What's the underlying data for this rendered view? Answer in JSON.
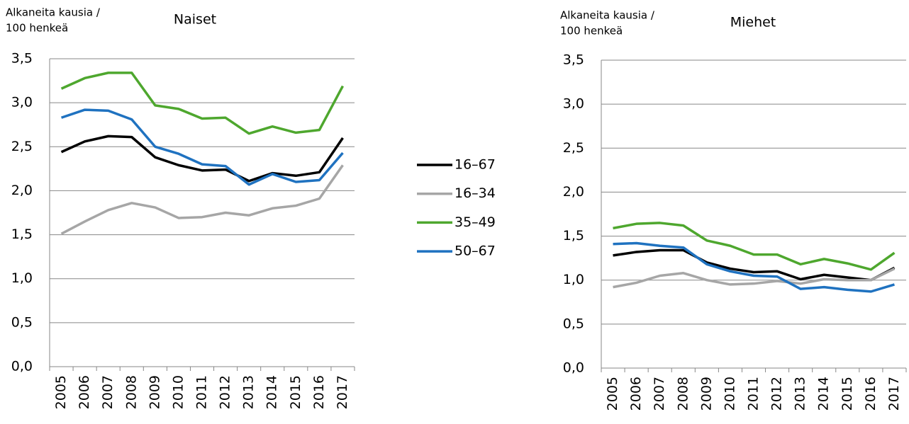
{
  "chart_data": [
    {
      "type": "line",
      "title": "Naiset",
      "ylabel": [
        "Alkaneita kausia /",
        "100 henkeä"
      ],
      "categories": [
        "2005",
        "2006",
        "2007",
        "2008",
        "2009",
        "2010",
        "2011",
        "2012",
        "2013",
        "2014",
        "2015",
        "2016",
        "2017"
      ],
      "ylim": [
        0,
        3.5
      ],
      "yticks": [
        {
          "value": 0,
          "label": "0,0"
        },
        {
          "value": 0.5,
          "label": "0,5"
        },
        {
          "value": 1,
          "label": "1,0"
        },
        {
          "value": 1.5,
          "label": "1,5"
        },
        {
          "value": 2,
          "label": "2,0"
        },
        {
          "value": 2.5,
          "label": "2,5"
        },
        {
          "value": 3,
          "label": "3,0"
        },
        {
          "value": 3.5,
          "label": "3,5"
        }
      ],
      "grid": true,
      "series": [
        {
          "name": "16–67",
          "color": "#000000",
          "values": [
            2.44,
            2.56,
            2.62,
            2.61,
            2.38,
            2.29,
            2.23,
            2.24,
            2.11,
            2.2,
            2.17,
            2.21,
            2.6
          ]
        },
        {
          "name": "16–34",
          "color": "#a6a6a6",
          "values": [
            1.51,
            1.65,
            1.78,
            1.86,
            1.81,
            1.69,
            1.7,
            1.75,
            1.72,
            1.8,
            1.83,
            1.91,
            2.29
          ]
        },
        {
          "name": "35–49",
          "color": "#4ea72e",
          "values": [
            3.16,
            3.28,
            3.34,
            3.34,
            2.97,
            2.93,
            2.82,
            2.83,
            2.65,
            2.73,
            2.66,
            2.69,
            3.19
          ]
        },
        {
          "name": "50–67",
          "color": "#1f72c0",
          "values": [
            2.83,
            2.92,
            2.91,
            2.81,
            2.5,
            2.42,
            2.3,
            2.28,
            2.07,
            2.19,
            2.1,
            2.12,
            2.43
          ]
        }
      ]
    },
    {
      "type": "line",
      "title": "Miehet",
      "ylabel": [
        "Alkaneita kausia /",
        "100 henkeä"
      ],
      "categories": [
        "2005",
        "2006",
        "2007",
        "2008",
        "2009",
        "2010",
        "2011",
        "2012",
        "2013",
        "2014",
        "2015",
        "2016",
        "2017"
      ],
      "ylim": [
        0,
        3.5
      ],
      "yticks": [
        {
          "value": 0,
          "label": "0,0"
        },
        {
          "value": 0.5,
          "label": "0,5"
        },
        {
          "value": 1,
          "label": "1,0"
        },
        {
          "value": 1.5,
          "label": "1,5"
        },
        {
          "value": 2,
          "label": "2,0"
        },
        {
          "value": 2.5,
          "label": "2,5"
        },
        {
          "value": 3,
          "label": "3,0"
        },
        {
          "value": 3.5,
          "label": "3,5"
        }
      ],
      "grid": true,
      "series": [
        {
          "color": "#000000",
          "values": [
            1.28,
            1.32,
            1.34,
            1.34,
            1.2,
            1.13,
            1.09,
            1.1,
            1.01,
            1.06,
            1.03,
            1.0,
            1.14
          ]
        },
        {
          "color": "#a6a6a6",
          "values": [
            0.92,
            0.97,
            1.05,
            1.08,
            1.0,
            0.95,
            0.96,
            0.99,
            0.96,
            1.01,
            1.0,
            1.0,
            1.13
          ]
        },
        {
          "color": "#4ea72e",
          "values": [
            1.59,
            1.64,
            1.65,
            1.62,
            1.45,
            1.39,
            1.29,
            1.29,
            1.18,
            1.24,
            1.19,
            1.12,
            1.31
          ]
        },
        {
          "color": "#1f72c0",
          "values": [
            1.41,
            1.42,
            1.39,
            1.37,
            1.18,
            1.1,
            1.05,
            1.04,
            0.9,
            0.92,
            0.89,
            0.87,
            0.95
          ]
        }
      ]
    }
  ]
}
